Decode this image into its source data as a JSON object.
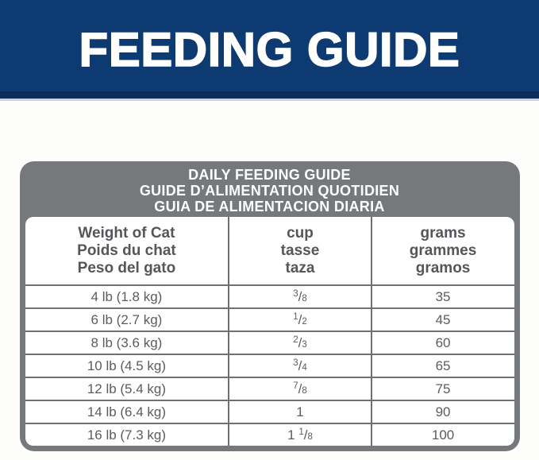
{
  "banner": {
    "title": "FEEDING GUIDE",
    "bg_color": "#0d3a71",
    "text_color": "#ffffff"
  },
  "table": {
    "title_lines": [
      "DAILY FEEDING GUIDE",
      "GUIDE D’ALIMENTATION QUOTIDIEN",
      "GUIA DE ALIMENTACION DIARIA"
    ],
    "columns": [
      {
        "lines": [
          "Weight of Cat",
          "Poids du chat",
          "Peso del gato"
        ]
      },
      {
        "lines": [
          "cup",
          "tasse",
          "taza"
        ]
      },
      {
        "lines": [
          "grams",
          "grammes",
          "gramos"
        ]
      }
    ],
    "rows": [
      {
        "weight": "4 lb (1.8 kg)",
        "cup": {
          "whole": "",
          "num": "3",
          "den": "8"
        },
        "grams": "35"
      },
      {
        "weight": "6 lb (2.7 kg)",
        "cup": {
          "whole": "",
          "num": "1",
          "den": "2"
        },
        "grams": "45"
      },
      {
        "weight": "8 lb (3.6 kg)",
        "cup": {
          "whole": "",
          "num": "2",
          "den": "3"
        },
        "grams": "60"
      },
      {
        "weight": "10 lb (4.5 kg)",
        "cup": {
          "whole": "",
          "num": "3",
          "den": "4"
        },
        "grams": "65"
      },
      {
        "weight": "12 lb (5.4 kg)",
        "cup": {
          "whole": "",
          "num": "7",
          "den": "8"
        },
        "grams": "75"
      },
      {
        "weight": "14 lb (6.4 kg)",
        "cup": {
          "whole": "1",
          "num": "",
          "den": ""
        },
        "grams": "90"
      },
      {
        "weight": "16 lb (7.3 kg)",
        "cup": {
          "whole": "1",
          "num": "1",
          "den": "8"
        },
        "grams": "100"
      }
    ],
    "colors": {
      "band_bg": "#75797c",
      "grid_line": "#6e7174",
      "band_text": "#ffffff",
      "header_text": "#54565a",
      "cell_text": "#5a5c5f"
    }
  }
}
